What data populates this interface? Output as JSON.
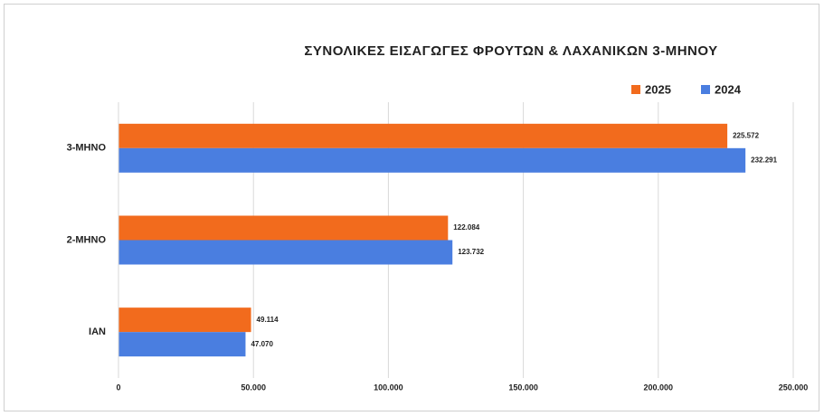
{
  "chart_data": {
    "type": "hbar",
    "title": "ΣΥΝΟΛΙΚΕΣ ΕΙΣΑΓΩΓΕΣ ΦΡΟΥΤΩΝ & ΛΑΧΑΝΙΚΩΝ  3-ΜΗΝΟΥ",
    "categories": [
      "3-ΜΗΝΟ",
      "2-ΜΗΝΟ",
      "ΙΑΝ"
    ],
    "series": [
      {
        "name": "2025",
        "color": "#f26b1d",
        "values": [
          225572,
          122084,
          49114
        ],
        "value_labels": [
          "225.572",
          "122.084",
          "49.114"
        ]
      },
      {
        "name": "2024",
        "color": "#4a7ee0",
        "values": [
          232291,
          123732,
          47070
        ],
        "value_labels": [
          "232.291",
          "123.732",
          "47.070"
        ]
      }
    ],
    "xlim": [
      0,
      250000
    ],
    "xticks": [
      0,
      {
        "value": 50000,
        "label": "50.000"
      },
      {
        "value": 100000,
        "label": "100.000"
      },
      {
        "value": 150000,
        "label": "150.000"
      },
      {
        "value": 200000,
        "label": "200.000"
      },
      {
        "value": 250000,
        "label": "250.000"
      }
    ],
    "grid": true
  }
}
